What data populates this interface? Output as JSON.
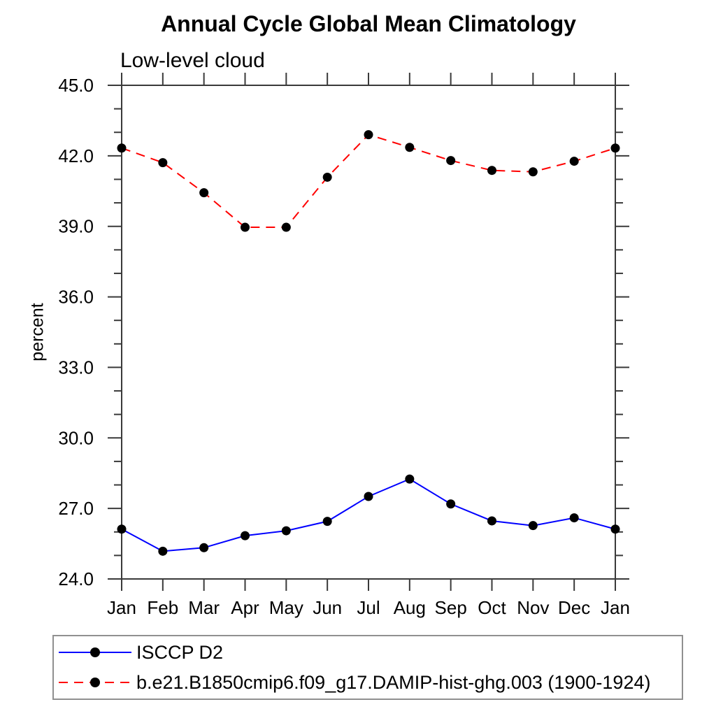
{
  "chart_data": {
    "type": "line",
    "title": "Annual Cycle Global Mean Climatology",
    "subtitle": "Low-level cloud",
    "ylabel": "percent",
    "x_categories": [
      "Jan",
      "Feb",
      "Mar",
      "Apr",
      "May",
      "Jun",
      "Jul",
      "Aug",
      "Sep",
      "Oct",
      "Nov",
      "Dec",
      "Jan"
    ],
    "ylim": [
      24.0,
      45.0
    ],
    "ytick_major_step": 3.0,
    "ytick_minor_step": 1.0,
    "ytick_labels": [
      "24.0",
      "27.0",
      "30.0",
      "33.0",
      "36.0",
      "39.0",
      "42.0",
      "45.0"
    ],
    "grid": "off",
    "axis_color": "#3a3a3a",
    "marker_color": "#000000",
    "legend_position": "bottom-left boxed",
    "series": [
      {
        "name": "ISCCP D2",
        "color": "#0000ff",
        "line_style": "solid",
        "values": [
          26.12,
          25.18,
          25.33,
          25.84,
          26.05,
          26.45,
          27.51,
          28.25,
          27.19,
          26.47,
          26.27,
          26.6,
          26.12
        ]
      },
      {
        "name": "b.e21.B1850cmip6.f09_g17.DAMIP-hist-ghg.003 (1900-1924)",
        "color": "#ff0000",
        "line_style": "dashed",
        "values": [
          42.33,
          41.71,
          40.43,
          38.96,
          38.96,
          41.09,
          42.9,
          42.36,
          41.8,
          41.38,
          41.32,
          41.77,
          42.33
        ]
      }
    ]
  }
}
